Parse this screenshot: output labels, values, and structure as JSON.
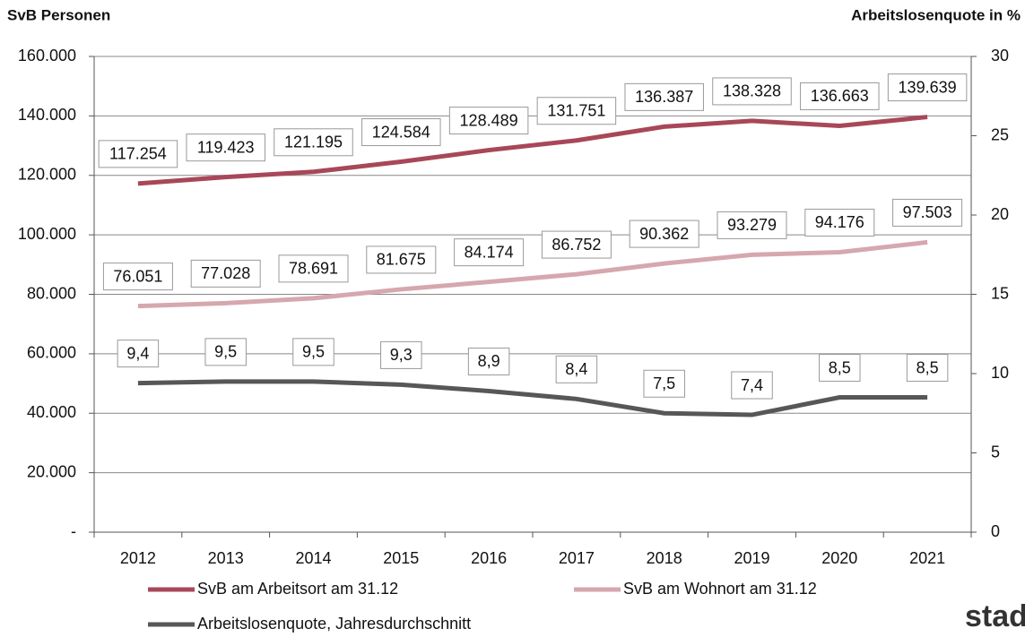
{
  "chart_data": {
    "type": "line",
    "ylabel": "SvB Personen",
    "y2label": "Arbeitslosenquote in %",
    "logo_text": "stad",
    "categories": [
      "2012",
      "2013",
      "2014",
      "2015",
      "2016",
      "2017",
      "2018",
      "2019",
      "2020",
      "2021"
    ],
    "series": [
      {
        "name": "SvB am Arbeitsort am 31.12",
        "color": "#a84758",
        "axis": "y",
        "values": [
          117254,
          119423,
          121195,
          124584,
          128489,
          131751,
          136387,
          138328,
          136663,
          139639
        ],
        "value_labels": [
          "117.254",
          "119.423",
          "121.195",
          "124.584",
          "128.489",
          "131.751",
          "136.387",
          "138.328",
          "136.663",
          "139.639"
        ]
      },
      {
        "name": "SvB am Wohnort am 31.12",
        "color": "#d6a7ae",
        "axis": "y",
        "values": [
          76051,
          77028,
          78691,
          81675,
          84174,
          86752,
          90362,
          93279,
          94176,
          97503
        ],
        "value_labels": [
          "76.051",
          "77.028",
          "78.691",
          "81.675",
          "84.174",
          "86.752",
          "90.362",
          "93.279",
          "94.176",
          "97.503"
        ]
      },
      {
        "name": "Arbeitslosenquote, Jahresdurchschnitt",
        "color": "#575757",
        "axis": "y2",
        "values": [
          9.4,
          9.5,
          9.5,
          9.3,
          8.9,
          8.4,
          7.5,
          7.4,
          8.5,
          8.5
        ],
        "value_labels": [
          "9,4",
          "9,5",
          "9,5",
          "9,3",
          "8,9",
          "8,4",
          "7,5",
          "7,4",
          "8,5",
          "8,5"
        ]
      }
    ],
    "ylim": [
      0,
      160000
    ],
    "yticks": [
      {
        "value": 0,
        "label": "-"
      },
      {
        "value": 20000,
        "label": "20.000"
      },
      {
        "value": 40000,
        "label": "40.000"
      },
      {
        "value": 60000,
        "label": "60.000"
      },
      {
        "value": 80000,
        "label": "80.000"
      },
      {
        "value": 100000,
        "label": "100.000"
      },
      {
        "value": 120000,
        "label": "120.000"
      },
      {
        "value": 140000,
        "label": "140.000"
      },
      {
        "value": 160000,
        "label": "160.000"
      }
    ],
    "y2lim": [
      0,
      30
    ],
    "y2ticks": [
      0,
      5,
      10,
      15,
      20,
      25,
      30
    ],
    "grid": true,
    "legend": "bottom"
  }
}
